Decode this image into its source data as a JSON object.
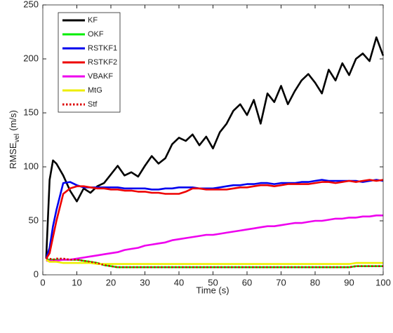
{
  "chart_data": {
    "type": "line",
    "xlabel": "Time (s)",
    "ylabel": "RMSE",
    "ylabel_sub": "vel",
    "ylabel_unit": "(m/s)",
    "x": [
      1,
      2,
      3,
      4,
      6,
      8,
      10,
      12,
      14,
      16,
      18,
      20,
      22,
      24,
      26,
      28,
      30,
      32,
      34,
      36,
      38,
      40,
      42,
      44,
      46,
      48,
      50,
      52,
      54,
      56,
      58,
      60,
      62,
      64,
      66,
      68,
      70,
      72,
      74,
      76,
      78,
      80,
      82,
      84,
      86,
      88,
      90,
      92,
      94,
      96,
      98,
      100
    ],
    "series": [
      {
        "name": "KF",
        "color": "#000000",
        "style": "solid",
        "values": [
          15,
          88,
          106,
          103,
          92,
          78,
          68,
          80,
          76,
          82,
          85,
          93,
          101,
          92,
          95,
          91,
          101,
          110,
          103,
          108,
          121,
          127,
          124,
          130,
          120,
          128,
          117,
          132,
          140,
          152,
          158,
          148,
          162,
          140,
          168,
          160,
          175,
          158,
          170,
          180,
          186,
          178,
          168,
          190,
          180,
          196,
          185,
          200,
          205,
          198,
          220,
          203
        ]
      },
      {
        "name": "OKF",
        "color": "#00ee00",
        "style": "solid",
        "values": [
          14,
          14,
          14,
          14,
          14,
          14,
          14,
          13,
          12,
          11,
          9,
          8,
          7,
          7,
          7,
          7,
          7,
          7,
          7,
          7,
          7,
          7,
          7,
          7,
          7,
          7,
          7,
          7,
          7,
          7,
          7,
          7,
          7,
          7,
          7,
          7,
          7,
          7,
          7,
          7,
          7,
          7,
          7,
          7,
          7,
          7,
          7,
          8,
          8,
          8,
          8,
          8
        ]
      },
      {
        "name": "RSTKF1",
        "color": "#0000ee",
        "style": "solid",
        "values": [
          15,
          25,
          45,
          60,
          85,
          86,
          83,
          81,
          81,
          81,
          81,
          81,
          81,
          80,
          80,
          80,
          80,
          79,
          79,
          80,
          80,
          81,
          81,
          81,
          80,
          80,
          80,
          81,
          82,
          83,
          83,
          84,
          84,
          85,
          85,
          84,
          85,
          85,
          85,
          86,
          86,
          87,
          88,
          87,
          87,
          87,
          87,
          87,
          86,
          87,
          88,
          87
        ]
      },
      {
        "name": "RSTKF2",
        "color": "#ee0000",
        "style": "solid",
        "values": [
          15,
          20,
          35,
          50,
          75,
          80,
          82,
          82,
          81,
          80,
          80,
          79,
          79,
          78,
          78,
          77,
          77,
          76,
          76,
          75,
          75,
          75,
          77,
          80,
          80,
          79,
          79,
          79,
          79,
          80,
          81,
          81,
          82,
          83,
          83,
          82,
          83,
          84,
          84,
          84,
          84,
          85,
          86,
          86,
          85,
          86,
          87,
          86,
          87,
          88,
          87,
          88
        ]
      },
      {
        "name": "VBAKF",
        "color": "#ee00ee",
        "style": "solid",
        "values": [
          13,
          13,
          13,
          13,
          14,
          14,
          15,
          16,
          17,
          18,
          19,
          20,
          21,
          23,
          24,
          25,
          27,
          28,
          29,
          30,
          32,
          33,
          34,
          35,
          36,
          37,
          37,
          38,
          39,
          40,
          41,
          42,
          43,
          44,
          45,
          45,
          46,
          47,
          48,
          48,
          49,
          50,
          50,
          51,
          52,
          52,
          53,
          53,
          54,
          54,
          55,
          55
        ]
      },
      {
        "name": "MtG",
        "color": "#eeee00",
        "style": "solid",
        "values": [
          14,
          12,
          12,
          12,
          11,
          11,
          11,
          11,
          11,
          10,
          10,
          10,
          10,
          10,
          10,
          10,
          10,
          10,
          10,
          10,
          10,
          10,
          10,
          10,
          10,
          10,
          10,
          10,
          10,
          10,
          10,
          10,
          10,
          10,
          10,
          10,
          10,
          10,
          10,
          10,
          10,
          10,
          10,
          10,
          10,
          10,
          10,
          11,
          11,
          11,
          11,
          11
        ]
      },
      {
        "name": "Stf",
        "color": "#dd0000",
        "style": "dotted",
        "values": [
          15,
          15,
          14,
          15,
          15,
          14,
          14,
          13,
          12,
          11,
          9,
          8,
          7,
          7,
          7,
          7,
          7,
          7,
          7,
          7,
          7,
          7,
          7,
          7,
          7,
          7,
          7,
          7,
          7,
          7,
          7,
          7,
          7,
          7,
          7,
          7,
          7,
          7,
          7,
          7,
          7,
          7,
          7,
          7,
          7,
          7,
          7,
          8,
          8,
          8,
          8,
          8
        ]
      }
    ],
    "xlim": [
      0,
      100
    ],
    "xticks": [
      0,
      10,
      20,
      30,
      40,
      50,
      60,
      70,
      80,
      90,
      100
    ],
    "ylim": [
      0,
      250
    ],
    "yticks": [
      0,
      50,
      100,
      150,
      200,
      250
    ],
    "grid": false,
    "legend": "top-left"
  }
}
